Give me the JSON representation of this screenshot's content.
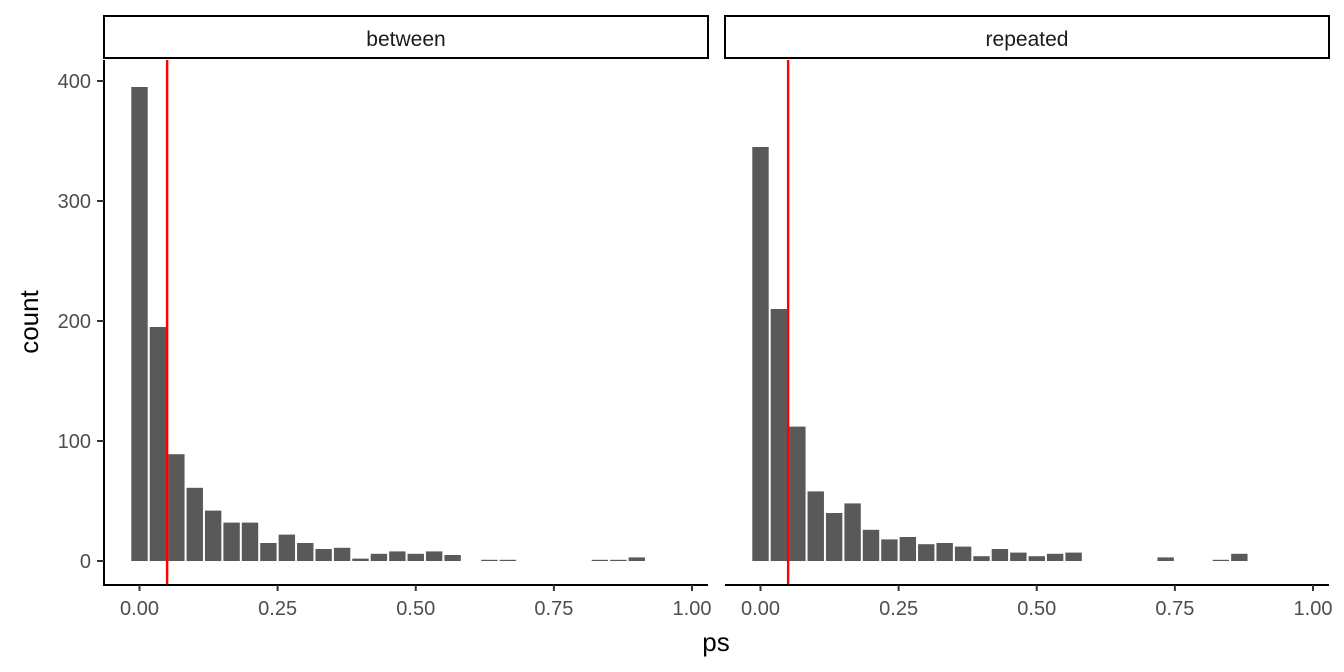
{
  "chart_data": {
    "type": "bar",
    "xlabel": "ps",
    "ylabel": "count",
    "xlim": [
      -0.05,
      1.0
    ],
    "ylim": [
      0,
      400
    ],
    "x_ticks": [
      0.0,
      0.25,
      0.5,
      0.75,
      1.0
    ],
    "x_tick_labels": [
      "0.00",
      "0.25",
      "0.50",
      "0.75",
      "1.00"
    ],
    "y_ticks": [
      0,
      100,
      200,
      300,
      400
    ],
    "y_tick_labels": [
      "0",
      "100",
      "200",
      "300",
      "400"
    ],
    "bin_width": 0.0333,
    "bin_centers": [
      0.0,
      0.0333,
      0.0667,
      0.1,
      0.1333,
      0.1667,
      0.2,
      0.2333,
      0.2667,
      0.3,
      0.3333,
      0.3667,
      0.4,
      0.4333,
      0.4667,
      0.5,
      0.5333,
      0.5667,
      0.6,
      0.6333,
      0.6667,
      0.7,
      0.7333,
      0.7667,
      0.8,
      0.8333,
      0.8667,
      0.9,
      0.9333,
      0.9667
    ],
    "reference_line": {
      "x": 0.05,
      "color": "#ff0000"
    },
    "bar_color": "#595959",
    "grid": false,
    "panels": [
      {
        "label": "between",
        "values": [
          395,
          195,
          89,
          61,
          42,
          32,
          32,
          15,
          22,
          15,
          10,
          11,
          2,
          6,
          8,
          6,
          8,
          5,
          0,
          1,
          1,
          0,
          0,
          0,
          0,
          1,
          1,
          3,
          0,
          0
        ]
      },
      {
        "label": "repeated",
        "values": [
          345,
          210,
          112,
          58,
          40,
          48,
          26,
          18,
          20,
          14,
          15,
          12,
          4,
          10,
          7,
          4,
          6,
          7,
          0,
          0,
          0,
          0,
          3,
          0,
          0,
          1,
          6,
          0,
          0,
          0
        ]
      }
    ]
  }
}
